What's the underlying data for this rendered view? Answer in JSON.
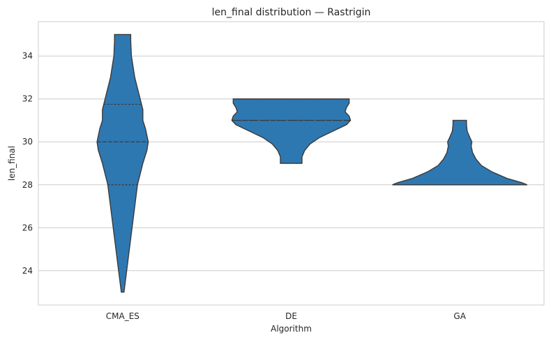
{
  "chart_data": {
    "type": "violin",
    "title": "len_final distribution — Rastrigin",
    "xlabel": "Algorithm",
    "ylabel": "len_final",
    "categories": [
      "CMA_ES",
      "DE",
      "GA"
    ],
    "ylim": [
      22.4,
      35.6
    ],
    "yticks": [
      24,
      26,
      28,
      30,
      32,
      34
    ],
    "grid": "horizontal",
    "fill_color": "#2e78b2",
    "edge_color": "#3a3a3a",
    "violins": [
      {
        "category": "CMA_ES",
        "min": 23,
        "q1": 28,
        "median": 30,
        "q3": 31.75,
        "max": 35,
        "profile": [
          [
            23,
            0.02
          ],
          [
            24,
            0.06
          ],
          [
            25,
            0.1
          ],
          [
            26,
            0.14
          ],
          [
            27,
            0.18
          ],
          [
            28,
            0.22
          ],
          [
            29,
            0.3
          ],
          [
            29.6,
            0.36
          ],
          [
            30,
            0.38
          ],
          [
            30.6,
            0.34
          ],
          [
            31,
            0.3
          ],
          [
            31.5,
            0.3
          ],
          [
            32,
            0.26
          ],
          [
            33,
            0.18
          ],
          [
            34,
            0.13
          ],
          [
            34.7,
            0.12
          ],
          [
            35,
            0.12
          ]
        ]
      },
      {
        "category": "DE",
        "min": 29,
        "q1": 31,
        "median": 31,
        "q3": 32,
        "max": 32,
        "profile": [
          [
            29,
            0.16
          ],
          [
            29.3,
            0.16
          ],
          [
            29.6,
            0.2
          ],
          [
            29.9,
            0.28
          ],
          [
            30.2,
            0.42
          ],
          [
            30.5,
            0.62
          ],
          [
            30.8,
            0.82
          ],
          [
            31,
            0.88
          ],
          [
            31.2,
            0.86
          ],
          [
            31.4,
            0.8
          ],
          [
            31.6,
            0.82
          ],
          [
            31.8,
            0.86
          ],
          [
            32,
            0.86
          ]
        ]
      },
      {
        "category": "GA",
        "min": 28,
        "q1": 28,
        "median": 28,
        "q3": 28,
        "max": 31,
        "profile": [
          [
            28,
            1.0
          ],
          [
            28.1,
            0.92
          ],
          [
            28.3,
            0.7
          ],
          [
            28.6,
            0.48
          ],
          [
            28.9,
            0.32
          ],
          [
            29.2,
            0.24
          ],
          [
            29.5,
            0.19
          ],
          [
            29.8,
            0.17
          ],
          [
            30.0,
            0.18
          ],
          [
            30.2,
            0.15
          ],
          [
            30.5,
            0.11
          ],
          [
            30.8,
            0.1
          ],
          [
            31,
            0.1
          ]
        ]
      }
    ]
  }
}
